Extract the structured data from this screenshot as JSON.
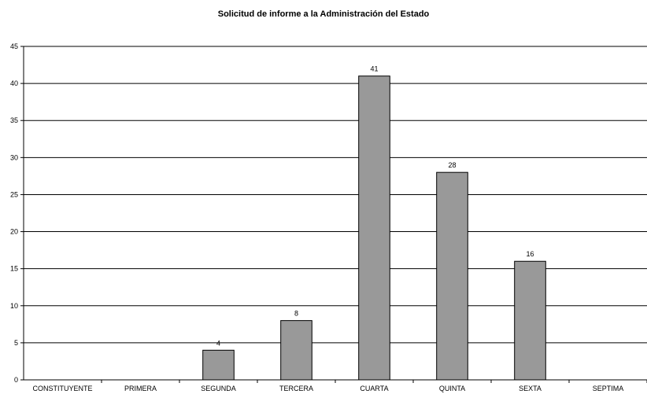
{
  "chart_data": {
    "type": "bar",
    "title": "Solicitud de informe a la Administración del Estado",
    "categories": [
      "CONSTITUYENTE",
      "PRIMERA",
      "SEGUNDA",
      "TERCERA",
      "CUARTA",
      "QUINTA",
      "SEXTA",
      "SEPTIMA"
    ],
    "values": [
      0,
      0,
      4,
      8,
      41,
      28,
      16,
      0
    ],
    "data_labels": [
      "",
      "",
      "4",
      "8",
      "41",
      "28",
      "16",
      ""
    ],
    "ylim": [
      0,
      45
    ],
    "yticks": [
      0,
      5,
      10,
      15,
      20,
      25,
      30,
      35,
      40,
      45
    ],
    "xlabel": "",
    "ylabel": "",
    "grid": true,
    "legend": "none",
    "bar_color": "#999999",
    "bar_edge_color": "#000000",
    "gridline_color": "#000000"
  }
}
